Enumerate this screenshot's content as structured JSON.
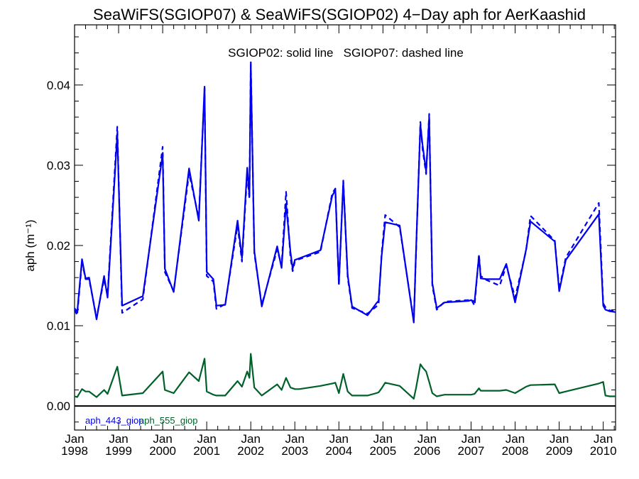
{
  "chart_data": {
    "type": "line",
    "title": "SeaWiFS(SGIOP07) & SeaWiFS(SGIOP02) 4−Day aph for AerKaashid",
    "note": "SGIOP02: solid line   SGIOP07: dashed line",
    "ylabel": "aph (m⁻¹)",
    "xlabel": "",
    "xlim": [
      1998.0,
      2010.28
    ],
    "ylim": [
      -0.003,
      0.0475
    ],
    "yticks": [
      0.0,
      0.01,
      0.02,
      0.03,
      0.04
    ],
    "ytick_labels": [
      "0.00",
      "0.01",
      "0.02",
      "0.03",
      "0.04"
    ],
    "xticks": [
      {
        "value": 1998,
        "month": "Jan",
        "year": "1998"
      },
      {
        "value": 1999,
        "month": "Jan",
        "year": "1999"
      },
      {
        "value": 2000,
        "month": "Jan",
        "year": "2000"
      },
      {
        "value": 2001,
        "month": "Jan",
        "year": "2001"
      },
      {
        "value": 2002,
        "month": "Jan",
        "year": "2002"
      },
      {
        "value": 2003,
        "month": "Jan",
        "year": "2003"
      },
      {
        "value": 2004,
        "month": "Jan",
        "year": "2004"
      },
      {
        "value": 2005,
        "month": "Jan",
        "year": "2005"
      },
      {
        "value": 2006,
        "month": "Jan",
        "year": "2006"
      },
      {
        "value": 2007,
        "month": "Jan",
        "year": "2007"
      },
      {
        "value": 2008,
        "month": "Jan",
        "year": "2008"
      },
      {
        "value": 2009,
        "month": "Jan",
        "year": "2009"
      },
      {
        "value": 2010,
        "month": "Jan",
        "year": "2010"
      }
    ],
    "minor_per_year": 4,
    "zero_line": true,
    "grid": false,
    "legend": [
      {
        "name": "aph_443_giop",
        "color": "#0000ee"
      },
      {
        "name": "aph_555_giop",
        "color": "#00602a"
      }
    ],
    "series": [
      {
        "name": "aph_443_giop",
        "method": "SGIOP02",
        "style": "solid",
        "color": "#0000ee",
        "x": [
          1998.0,
          1998.06,
          1998.17,
          1998.25,
          1998.33,
          1998.5,
          1998.67,
          1998.75,
          1998.97,
          1999.08,
          1999.55,
          2000.0,
          2000.05,
          2000.25,
          2000.6,
          2000.82,
          2000.95,
          2001.0,
          2001.15,
          2001.22,
          2001.42,
          2001.7,
          2001.8,
          2001.92,
          2001.97,
          2002.0,
          2002.08,
          2002.25,
          2002.6,
          2002.7,
          2002.8,
          2002.9,
          2002.95,
          2003.0,
          2003.1,
          2003.58,
          2003.85,
          2003.92,
          2004.0,
          2004.1,
          2004.2,
          2004.3,
          2004.65,
          2004.85,
          2004.9,
          2004.97,
          2005.05,
          2005.38,
          2005.7,
          2005.75,
          2005.85,
          2005.9,
          2005.98,
          2006.05,
          2006.12,
          2006.22,
          2006.4,
          2006.95,
          2007.0,
          2007.08,
          2007.18,
          2007.22,
          2007.35,
          2007.65,
          2007.8,
          2008.0,
          2008.25,
          2008.35,
          2008.9,
          2009.0,
          2009.15,
          2009.9,
          2010.0,
          2010.05,
          2010.15,
          2010.28
        ],
        "values": [
          0.0122,
          0.0116,
          0.0183,
          0.0159,
          0.016,
          0.0108,
          0.0162,
          0.0135,
          0.0339,
          0.0125,
          0.0137,
          0.0314,
          0.0171,
          0.0142,
          0.0296,
          0.0231,
          0.0398,
          0.0167,
          0.0158,
          0.0125,
          0.0126,
          0.0231,
          0.0184,
          0.0297,
          0.0261,
          0.0425,
          0.0193,
          0.0124,
          0.0199,
          0.0172,
          0.0252,
          0.0192,
          0.0171,
          0.0182,
          0.0184,
          0.0194,
          0.0262,
          0.0269,
          0.0152,
          0.0279,
          0.0163,
          0.0124,
          0.0113,
          0.0128,
          0.0131,
          0.0187,
          0.0229,
          0.0225,
          0.0104,
          0.0192,
          0.035,
          0.0325,
          0.0292,
          0.036,
          0.0153,
          0.0122,
          0.0129,
          0.0131,
          0.0132,
          0.013,
          0.0187,
          0.0159,
          0.0158,
          0.0158,
          0.0177,
          0.0129,
          0.0195,
          0.023,
          0.0205,
          0.0143,
          0.0182,
          0.0239,
          0.0125,
          0.012,
          0.0118,
          0.0117
        ],
        "dashed_values": [
          0.012,
          0.0113,
          0.018,
          0.0158,
          0.0158,
          0.011,
          0.0158,
          0.0138,
          0.0348,
          0.0116,
          0.0133,
          0.0323,
          0.0167,
          0.0143,
          0.029,
          0.0234,
          0.0396,
          0.0162,
          0.0155,
          0.0121,
          0.0127,
          0.0225,
          0.018,
          0.029,
          0.0258,
          0.043,
          0.019,
          0.0126,
          0.0195,
          0.0175,
          0.0267,
          0.0185,
          0.0168,
          0.018,
          0.0183,
          0.0192,
          0.0265,
          0.0271,
          0.015,
          0.0281,
          0.016,
          0.0122,
          0.0115,
          0.0124,
          0.0126,
          0.019,
          0.0238,
          0.0223,
          0.0106,
          0.0189,
          0.0354,
          0.032,
          0.0289,
          0.0364,
          0.015,
          0.012,
          0.013,
          0.0132,
          0.0133,
          0.0125,
          0.0189,
          0.0162,
          0.0157,
          0.015,
          0.0175,
          0.0135,
          0.0194,
          0.0237,
          0.0206,
          0.0145,
          0.0185,
          0.0253,
          0.0128,
          0.0123,
          0.0119,
          0.0118
        ]
      },
      {
        "name": "aph_555_giop",
        "method": "SGIOP02",
        "style": "solid",
        "color": "#00602a",
        "x": [
          1998.0,
          1998.06,
          1998.17,
          1998.25,
          1998.33,
          1998.5,
          1998.67,
          1998.75,
          1998.97,
          1999.08,
          1999.55,
          2000.0,
          2000.05,
          2000.25,
          2000.6,
          2000.82,
          2000.95,
          2001.0,
          2001.15,
          2001.22,
          2001.42,
          2001.7,
          2001.8,
          2001.92,
          2001.97,
          2002.0,
          2002.08,
          2002.25,
          2002.6,
          2002.7,
          2002.8,
          2002.9,
          2002.95,
          2003.0,
          2003.1,
          2003.58,
          2003.85,
          2003.92,
          2004.0,
          2004.1,
          2004.2,
          2004.3,
          2004.65,
          2004.85,
          2004.9,
          2004.97,
          2005.05,
          2005.38,
          2005.7,
          2005.75,
          2005.85,
          2005.9,
          2005.98,
          2006.05,
          2006.12,
          2006.22,
          2006.4,
          2006.95,
          2007.0,
          2007.08,
          2007.18,
          2007.22,
          2007.35,
          2007.65,
          2007.8,
          2008.0,
          2008.25,
          2008.35,
          2008.9,
          2009.0,
          2009.15,
          2009.9,
          2010.0,
          2010.05,
          2010.15,
          2010.28
        ],
        "values": [
          0.0012,
          0.0011,
          0.0021,
          0.0018,
          0.0018,
          0.0011,
          0.002,
          0.0015,
          0.0049,
          0.0013,
          0.0016,
          0.0043,
          0.002,
          0.0016,
          0.0042,
          0.0031,
          0.0059,
          0.0018,
          0.0014,
          0.0013,
          0.0013,
          0.0031,
          0.0024,
          0.0043,
          0.0035,
          0.0065,
          0.0023,
          0.0013,
          0.0027,
          0.002,
          0.0035,
          0.0023,
          0.0022,
          0.0021,
          0.0021,
          0.0025,
          0.0028,
          0.0029,
          0.0016,
          0.004,
          0.0018,
          0.0013,
          0.0013,
          0.0016,
          0.0017,
          0.0022,
          0.0029,
          0.0025,
          0.0009,
          0.0022,
          0.0052,
          0.0048,
          0.0043,
          0.003,
          0.0016,
          0.0012,
          0.0014,
          0.0014,
          0.0014,
          0.0015,
          0.0022,
          0.0019,
          0.0019,
          0.0019,
          0.002,
          0.0016,
          0.0024,
          0.0026,
          0.0027,
          0.0016,
          0.0018,
          0.0028,
          0.003,
          0.0013,
          0.0012,
          0.0012
        ]
      }
    ]
  }
}
